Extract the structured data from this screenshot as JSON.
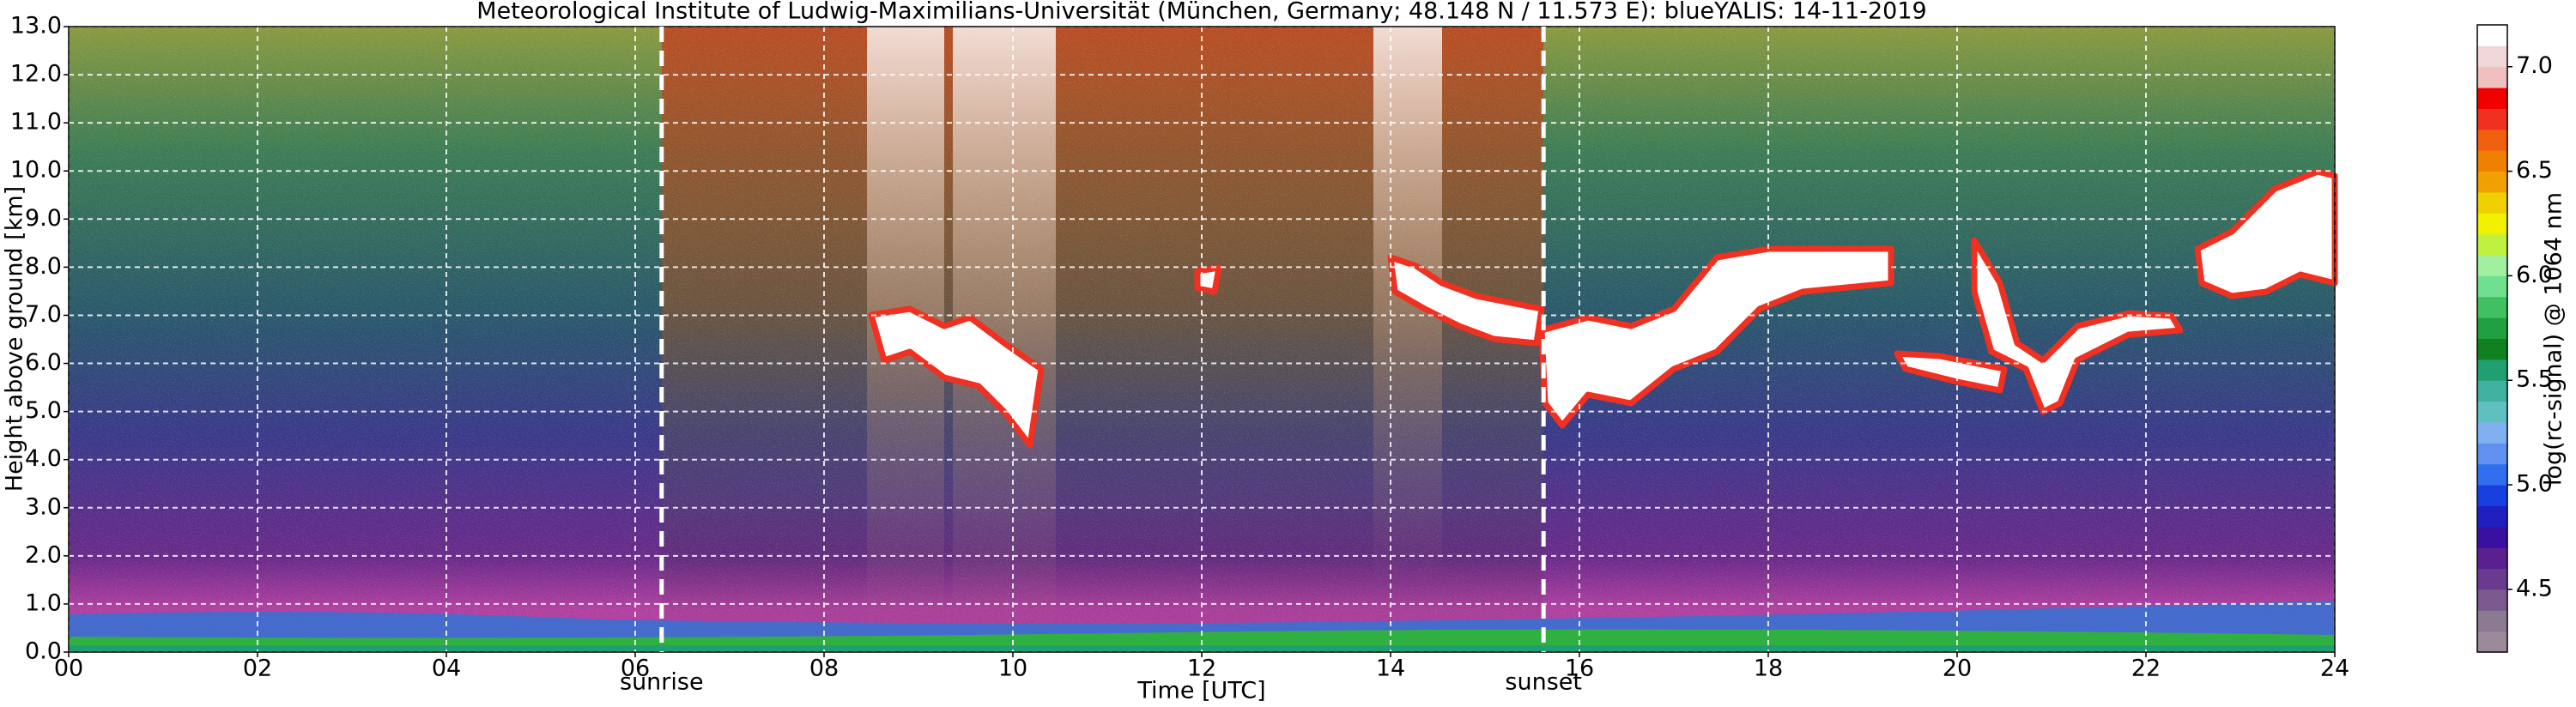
{
  "chart_data": {
    "type": "lidar-heatmap",
    "title": "Meteorological Institute of Ludwig-Maximilians-Universität (München, Germany; 48.148 N / 11.573 E):    blueYALIS: 14-11-2019",
    "x_label": "Time [UTC]",
    "y_label": "Height above ground [km]",
    "xlim": [
      0,
      24
    ],
    "xticks": [
      {
        "value": 0,
        "label": "00"
      },
      {
        "value": 2,
        "label": "02"
      },
      {
        "value": 4,
        "label": "04"
      },
      {
        "value": 6,
        "label": "06"
      },
      {
        "value": 8,
        "label": "08"
      },
      10,
      12,
      14,
      16,
      18,
      20,
      22,
      24
    ],
    "ylim": [
      0,
      13
    ],
    "yticks": [
      {
        "value": 0,
        "label": "0.0"
      },
      {
        "value": 1,
        "label": "1.0"
      },
      {
        "value": 2,
        "label": "2.0"
      },
      {
        "value": 3,
        "label": "3.0"
      },
      {
        "value": 4,
        "label": "4.0"
      },
      {
        "value": 5,
        "label": "5.0"
      },
      {
        "value": 6,
        "label": "6.0"
      },
      {
        "value": 7,
        "label": "7.0"
      },
      {
        "value": 8,
        "label": "8.0"
      },
      {
        "value": 9,
        "label": "9.0"
      },
      {
        "value": 10,
        "label": "10.0"
      },
      {
        "value": 11,
        "label": "11.0"
      },
      {
        "value": 12,
        "label": "12.0"
      },
      {
        "value": 13,
        "label": "13.0"
      }
    ],
    "grid": true,
    "annotations": [
      {
        "x": 6.28,
        "label": "sunrise"
      },
      {
        "x": 15.62,
        "label": "sunset"
      }
    ],
    "colorbar": {
      "label": "log(rc-signal) @ 1064 nm",
      "lim": [
        4.2,
        7.2
      ],
      "ticks": [
        4.5,
        {
          "value": 5,
          "label": "5.0"
        },
        5.5,
        {
          "value": 6,
          "label": "6.0"
        },
        6.5,
        {
          "value": 7,
          "label": "7.0"
        }
      ],
      "colors": [
        "#9a8a9a",
        "#8c7a92",
        "#7a5a8e",
        "#6a3a8e",
        "#5a2090",
        "#3a10a0",
        "#2020c0",
        "#1840e0",
        "#3070f0",
        "#6090f0",
        "#80b0f0",
        "#60c0c0",
        "#40b0a0",
        "#20a070",
        "#108020",
        "#20a040",
        "#40c060",
        "#70e090",
        "#a0f0a0",
        "#c0f040",
        "#f0f000",
        "#f0d000",
        "#f0a000",
        "#f08000",
        "#f06010",
        "#f03020",
        "#f00000",
        "#f0c0c0",
        "#f0d8d8",
        "#ffffff"
      ]
    }
  }
}
